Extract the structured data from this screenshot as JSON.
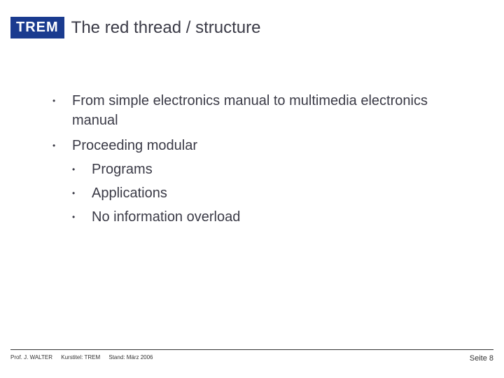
{
  "header": {
    "badge": "TREM",
    "title": "The red thread / structure"
  },
  "content": {
    "items": [
      {
        "text": "From simple electronics manual to multimedia electronics manual",
        "sub": []
      },
      {
        "text": "Proceeding modular",
        "sub": [
          "Programs",
          "Applications",
          "No information overload"
        ]
      }
    ]
  },
  "footer": {
    "author": "Prof. J. WALTER",
    "course": "Kurstitel: TREM",
    "date": "Stand: März 2006",
    "page": "Seite 8"
  },
  "colors": {
    "badge_bg": "#1a3b8f",
    "badge_fg": "#ffffff",
    "text": "#3a3a46",
    "background": "#ffffff"
  }
}
